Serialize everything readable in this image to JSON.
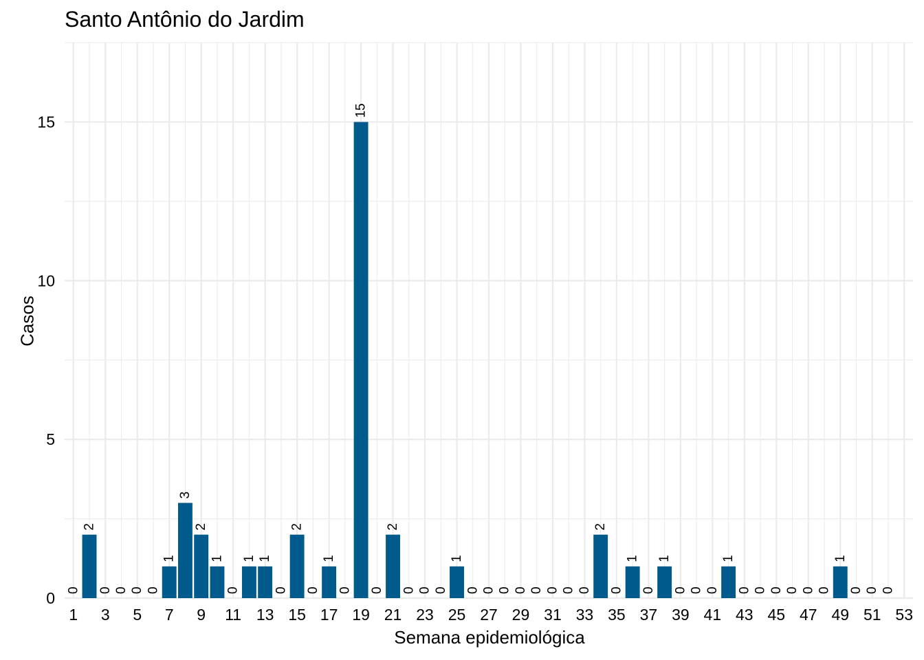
{
  "chart_data": {
    "type": "bar",
    "title": "Santo Antônio do Jardim",
    "xlabel": "Semana epidemiológica",
    "ylabel": "Casos",
    "x": [
      1,
      2,
      3,
      4,
      5,
      6,
      7,
      8,
      9,
      10,
      11,
      12,
      13,
      14,
      15,
      16,
      17,
      18,
      19,
      20,
      21,
      22,
      23,
      24,
      25,
      26,
      27,
      28,
      29,
      30,
      31,
      32,
      33,
      34,
      35,
      36,
      37,
      38,
      39,
      40,
      41,
      42,
      43,
      44,
      45,
      46,
      47,
      48,
      49,
      50,
      51,
      52
    ],
    "values": [
      0,
      2,
      0,
      0,
      0,
      0,
      1,
      3,
      2,
      1,
      0,
      1,
      1,
      0,
      2,
      0,
      1,
      0,
      15,
      0,
      2,
      0,
      0,
      0,
      1,
      0,
      0,
      0,
      0,
      0,
      0,
      0,
      0,
      2,
      0,
      1,
      0,
      1,
      0,
      0,
      0,
      1,
      0,
      0,
      0,
      0,
      0,
      0,
      1,
      0,
      0,
      0
    ],
    "xticks": [
      "1",
      "3",
      "5",
      "7",
      "9",
      "11",
      "13",
      "15",
      "17",
      "19",
      "21",
      "23",
      "25",
      "27",
      "29",
      "31",
      "33",
      "35",
      "37",
      "39",
      "41",
      "43",
      "45",
      "47",
      "49",
      "51",
      "53"
    ],
    "yticks": [
      "0",
      "5",
      "10",
      "15"
    ],
    "ylim": [
      0,
      17.5
    ],
    "xlim": [
      0.45,
      53.55
    ],
    "bar_color": "#005b8c",
    "grid": true,
    "legend": "none"
  }
}
